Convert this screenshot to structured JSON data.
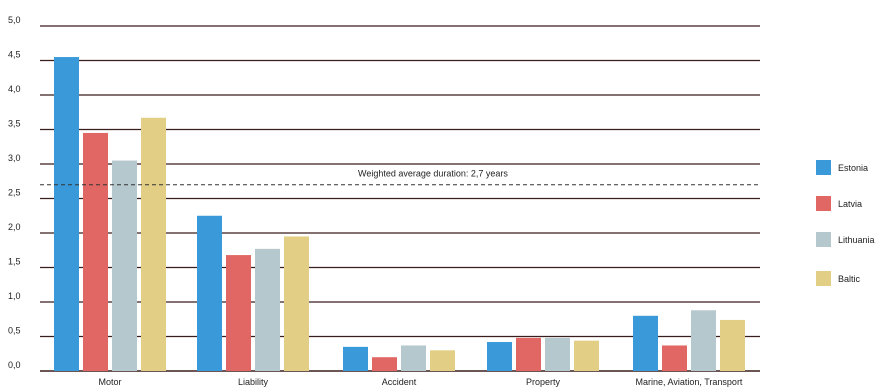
{
  "chart_data": {
    "type": "bar",
    "categories": [
      "Motor",
      "Liability",
      "Accident",
      "Property",
      "Marine, Aviation, Transport"
    ],
    "series": [
      {
        "name": "Estonia",
        "color": "#3a9ad9",
        "values": [
          4.55,
          2.25,
          0.35,
          0.42,
          0.8
        ]
      },
      {
        "name": "Latvia",
        "color": "#e06763",
        "values": [
          3.45,
          1.68,
          0.2,
          0.48,
          0.37
        ]
      },
      {
        "name": "Lithuania",
        "color": "#b5c8ce",
        "values": [
          3.05,
          1.77,
          0.37,
          0.48,
          0.88
        ]
      },
      {
        "name": "Baltic",
        "color": "#e2cf85",
        "values": [
          3.67,
          1.95,
          0.3,
          0.44,
          0.74
        ]
      }
    ],
    "ylim": [
      0,
      5
    ],
    "yticks": [
      "0,0",
      "0,5",
      "1,0",
      "1,5",
      "2,0",
      "2,5",
      "3,0",
      "3,5",
      "4,0",
      "4,5",
      "5,0"
    ],
    "ytick_values": [
      0,
      0.5,
      1,
      1.5,
      2,
      2.5,
      3,
      3.5,
      4,
      4.5,
      5
    ],
    "reference_line": {
      "value": 2.7,
      "label": "Weighted average duration: 2,7 years",
      "style": "dashed"
    },
    "grid": true,
    "legend_position": "right",
    "title": "",
    "xlabel": "",
    "ylabel": ""
  }
}
